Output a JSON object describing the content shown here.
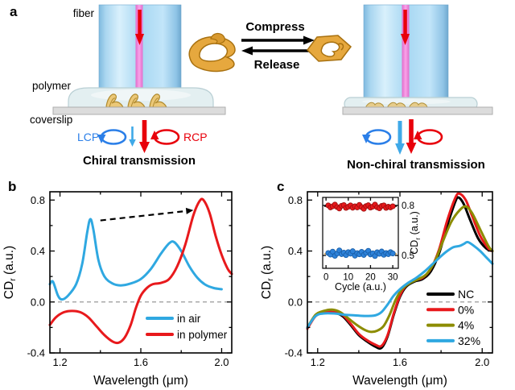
{
  "panel_labels": {
    "a": "a",
    "b": "b",
    "c": "c"
  },
  "panel_a": {
    "left": {
      "fiber": "fiber",
      "polymer": "polymer",
      "coverslip": "coverslip",
      "lcp": "LCP",
      "rcp": "RCP",
      "caption": "Chiral transmission"
    },
    "middle": {
      "compress": "Compress",
      "release": "Release"
    },
    "right": {
      "caption": "Non-chiral transmission"
    },
    "colors": {
      "arrow_red": "#E8000B",
      "icon_blue": "#2B7FE8",
      "gold": "#E6A83E",
      "fiber_blue": "#A6D7F2",
      "fiber_core": "#F07CDE"
    }
  },
  "chart_data": [
    {
      "id": "b",
      "type": "line",
      "xlabel": "Wavelength (μm)",
      "ylabel": {
        "pre": "CD",
        "sub": "r",
        "post": " (a.u.)"
      },
      "xlim": [
        1.15,
        2.05
      ],
      "ylim": [
        -0.4,
        0.865
      ],
      "xticks": [
        1.2,
        1.6,
        2.0
      ],
      "xtick_labels": [
        "1.2",
        "1.6",
        "2.0"
      ],
      "xticks_minor": [
        1.4,
        1.8
      ],
      "yticks": [
        -0.4,
        0.0,
        0.4,
        0.8
      ],
      "ytick_labels": [
        "-0.4",
        "0.0",
        "0.4",
        "0.8"
      ],
      "yticks_minor": [
        -0.2,
        0.2,
        0.6
      ],
      "zero_line": true,
      "zero_line_color": "#999999",
      "grid": false,
      "legend_position": "bottom-right",
      "annotation_arrow": {
        "from": [
          1.4,
          0.64
        ],
        "to": [
          1.86,
          0.72
        ],
        "color": "#000000",
        "style": "dashed"
      },
      "series": [
        {
          "name": "in air",
          "color": "#2FA8E1",
          "x": [
            1.15,
            1.165,
            1.19,
            1.21,
            1.24,
            1.28,
            1.31,
            1.335,
            1.35,
            1.365,
            1.39,
            1.42,
            1.46,
            1.5,
            1.55,
            1.6,
            1.65,
            1.7,
            1.74,
            1.765,
            1.8,
            1.84,
            1.88,
            1.92,
            1.96,
            2.0
          ],
          "y": [
            0.14,
            0.16,
            0.05,
            0.02,
            0.05,
            0.14,
            0.3,
            0.55,
            0.65,
            0.57,
            0.33,
            0.2,
            0.145,
            0.13,
            0.145,
            0.18,
            0.26,
            0.38,
            0.46,
            0.47,
            0.4,
            0.28,
            0.19,
            0.135,
            0.11,
            0.1
          ]
        },
        {
          "name": "in polymer",
          "color": "#E8191C",
          "x": [
            1.15,
            1.18,
            1.22,
            1.26,
            1.3,
            1.34,
            1.38,
            1.42,
            1.46,
            1.49,
            1.52,
            1.55,
            1.575,
            1.6,
            1.63,
            1.66,
            1.7,
            1.74,
            1.78,
            1.82,
            1.86,
            1.89,
            1.91,
            1.94,
            1.97,
            2.0,
            2.03,
            2.05
          ],
          "y": [
            -0.18,
            -0.12,
            -0.08,
            -0.07,
            -0.08,
            -0.12,
            -0.19,
            -0.26,
            -0.31,
            -0.32,
            -0.28,
            -0.18,
            -0.05,
            0.05,
            0.11,
            0.14,
            0.15,
            0.18,
            0.28,
            0.45,
            0.68,
            0.79,
            0.8,
            0.7,
            0.52,
            0.37,
            0.26,
            0.22
          ]
        }
      ]
    },
    {
      "id": "c",
      "type": "line",
      "xlabel": "Wavelength (μm)",
      "ylabel": {
        "pre": "CD",
        "sub": "r",
        "post": " (a.u.)"
      },
      "xlim": [
        1.15,
        2.05
      ],
      "ylim": [
        -0.4,
        0.865
      ],
      "xticks": [
        1.2,
        1.6,
        2.0
      ],
      "xtick_labels": [
        "1.2",
        "1.6",
        "2.0"
      ],
      "xticks_minor": [
        1.4,
        1.8
      ],
      "yticks": [
        -0.4,
        0.0,
        0.4,
        0.8
      ],
      "ytick_labels": [
        "-0.4",
        "0.0",
        "0.4",
        "0.8"
      ],
      "yticks_minor": [
        -0.2,
        0.2,
        0.6
      ],
      "zero_line": true,
      "zero_line_color": "#999999",
      "grid": false,
      "legend_position": "right",
      "series": [
        {
          "name": "NC",
          "color": "#000000",
          "x": [
            1.15,
            1.19,
            1.23,
            1.28,
            1.32,
            1.36,
            1.4,
            1.44,
            1.48,
            1.51,
            1.54,
            1.57,
            1.6,
            1.63,
            1.67,
            1.71,
            1.75,
            1.79,
            1.83,
            1.87,
            1.885,
            1.91,
            1.94,
            1.98,
            2.02,
            2.05
          ],
          "y": [
            -0.2,
            -0.11,
            -0.085,
            -0.085,
            -0.11,
            -0.18,
            -0.26,
            -0.31,
            -0.35,
            -0.36,
            -0.27,
            -0.1,
            0.04,
            0.12,
            0.16,
            0.18,
            0.24,
            0.38,
            0.6,
            0.79,
            0.82,
            0.77,
            0.65,
            0.5,
            0.42,
            0.4
          ]
        },
        {
          "name": "0%",
          "color": "#E8191C",
          "x": [
            1.15,
            1.19,
            1.23,
            1.28,
            1.32,
            1.36,
            1.4,
            1.44,
            1.48,
            1.51,
            1.54,
            1.57,
            1.6,
            1.63,
            1.67,
            1.71,
            1.75,
            1.79,
            1.83,
            1.87,
            1.89,
            1.92,
            1.95,
            1.99,
            2.03,
            2.05
          ],
          "y": [
            -0.21,
            -0.11,
            -0.08,
            -0.08,
            -0.1,
            -0.17,
            -0.25,
            -0.3,
            -0.335,
            -0.345,
            -0.26,
            -0.09,
            0.05,
            0.13,
            0.17,
            0.19,
            0.26,
            0.41,
            0.64,
            0.82,
            0.85,
            0.8,
            0.68,
            0.52,
            0.42,
            0.4
          ]
        },
        {
          "name": "4%",
          "color": "#8C8C00",
          "x": [
            1.15,
            1.19,
            1.23,
            1.27,
            1.31,
            1.35,
            1.39,
            1.43,
            1.46,
            1.49,
            1.52,
            1.55,
            1.58,
            1.61,
            1.65,
            1.69,
            1.73,
            1.77,
            1.81,
            1.85,
            1.89,
            1.92,
            1.95,
            1.99,
            2.03,
            2.05
          ],
          "y": [
            -0.2,
            -0.1,
            -0.07,
            -0.06,
            -0.08,
            -0.13,
            -0.18,
            -0.22,
            -0.235,
            -0.225,
            -0.19,
            -0.1,
            0.02,
            0.1,
            0.15,
            0.18,
            0.22,
            0.32,
            0.48,
            0.63,
            0.72,
            0.75,
            0.7,
            0.57,
            0.44,
            0.4
          ]
        },
        {
          "name": "32%",
          "color": "#2FA8E1",
          "x": [
            1.15,
            1.19,
            1.23,
            1.28,
            1.33,
            1.38,
            1.43,
            1.48,
            1.51,
            1.54,
            1.57,
            1.6,
            1.64,
            1.68,
            1.72,
            1.76,
            1.8,
            1.83,
            1.86,
            1.89,
            1.91,
            1.93,
            1.96,
            1.99,
            2.02,
            2.05
          ],
          "y": [
            -0.2,
            -0.11,
            -0.09,
            -0.09,
            -0.1,
            -0.105,
            -0.11,
            -0.105,
            -0.08,
            -0.02,
            0.05,
            0.1,
            0.15,
            0.19,
            0.24,
            0.3,
            0.36,
            0.4,
            0.43,
            0.44,
            0.455,
            0.47,
            0.44,
            0.4,
            0.35,
            0.3
          ]
        }
      ]
    },
    {
      "id": "c_inset",
      "type": "scatter",
      "xlabel": "Cycle (a.u.)",
      "ylabel": {
        "pre": "CD",
        "sub": "r",
        "post": " (a.u.)"
      },
      "xlim": [
        -1.5,
        32.5
      ],
      "ylim": [
        0.423,
        0.848
      ],
      "xticks": [
        0,
        10,
        20,
        30
      ],
      "xtick_labels": [
        "0",
        "10",
        "20",
        "30"
      ],
      "xticks_minor": [],
      "yticks": [
        0.5,
        0.8
      ],
      "ytick_labels": [
        "0.5",
        "0.8"
      ],
      "yticks_minor": [],
      "zero_line": false,
      "grid": false,
      "legend_position": "none",
      "series": [
        {
          "name": "cycled-high",
          "color": "#E8191C",
          "edge": "#9E1010",
          "marker": "circle",
          "ref_line": {
            "y": 0.795,
            "color": "#000000"
          },
          "x": [
            1,
            2,
            3,
            4,
            5,
            6,
            7,
            8,
            9,
            10,
            11,
            12,
            13,
            14,
            15,
            16,
            17,
            18,
            19,
            20,
            21,
            22,
            23,
            24,
            25,
            26,
            27,
            28,
            29,
            30
          ],
          "y": [
            0.8,
            0.788,
            0.795,
            0.805,
            0.79,
            0.782,
            0.798,
            0.802,
            0.785,
            0.792,
            0.8,
            0.786,
            0.795,
            0.788,
            0.803,
            0.79,
            0.78,
            0.796,
            0.801,
            0.787,
            0.793,
            0.805,
            0.789,
            0.783,
            0.797,
            0.8,
            0.785,
            0.792,
            0.788,
            0.795
          ]
        },
        {
          "name": "cycled-low",
          "color": "#2E82D9",
          "edge": "#1A5FA8",
          "marker": "circle",
          "ref_line": {
            "y": 0.51,
            "color": "#F0A236"
          },
          "x": [
            1,
            2,
            3,
            4,
            5,
            6,
            7,
            8,
            9,
            10,
            11,
            12,
            13,
            14,
            15,
            16,
            17,
            18,
            19,
            20,
            21,
            22,
            23,
            24,
            25,
            26,
            27,
            28,
            29,
            30
          ],
          "y": [
            0.515,
            0.505,
            0.523,
            0.498,
            0.512,
            0.53,
            0.508,
            0.517,
            0.502,
            0.52,
            0.511,
            0.526,
            0.499,
            0.514,
            0.507,
            0.522,
            0.503,
            0.516,
            0.528,
            0.506,
            0.513,
            0.497,
            0.519,
            0.51,
            0.524,
            0.504,
            0.515,
            0.508,
            0.52,
            0.512
          ]
        }
      ]
    }
  ]
}
